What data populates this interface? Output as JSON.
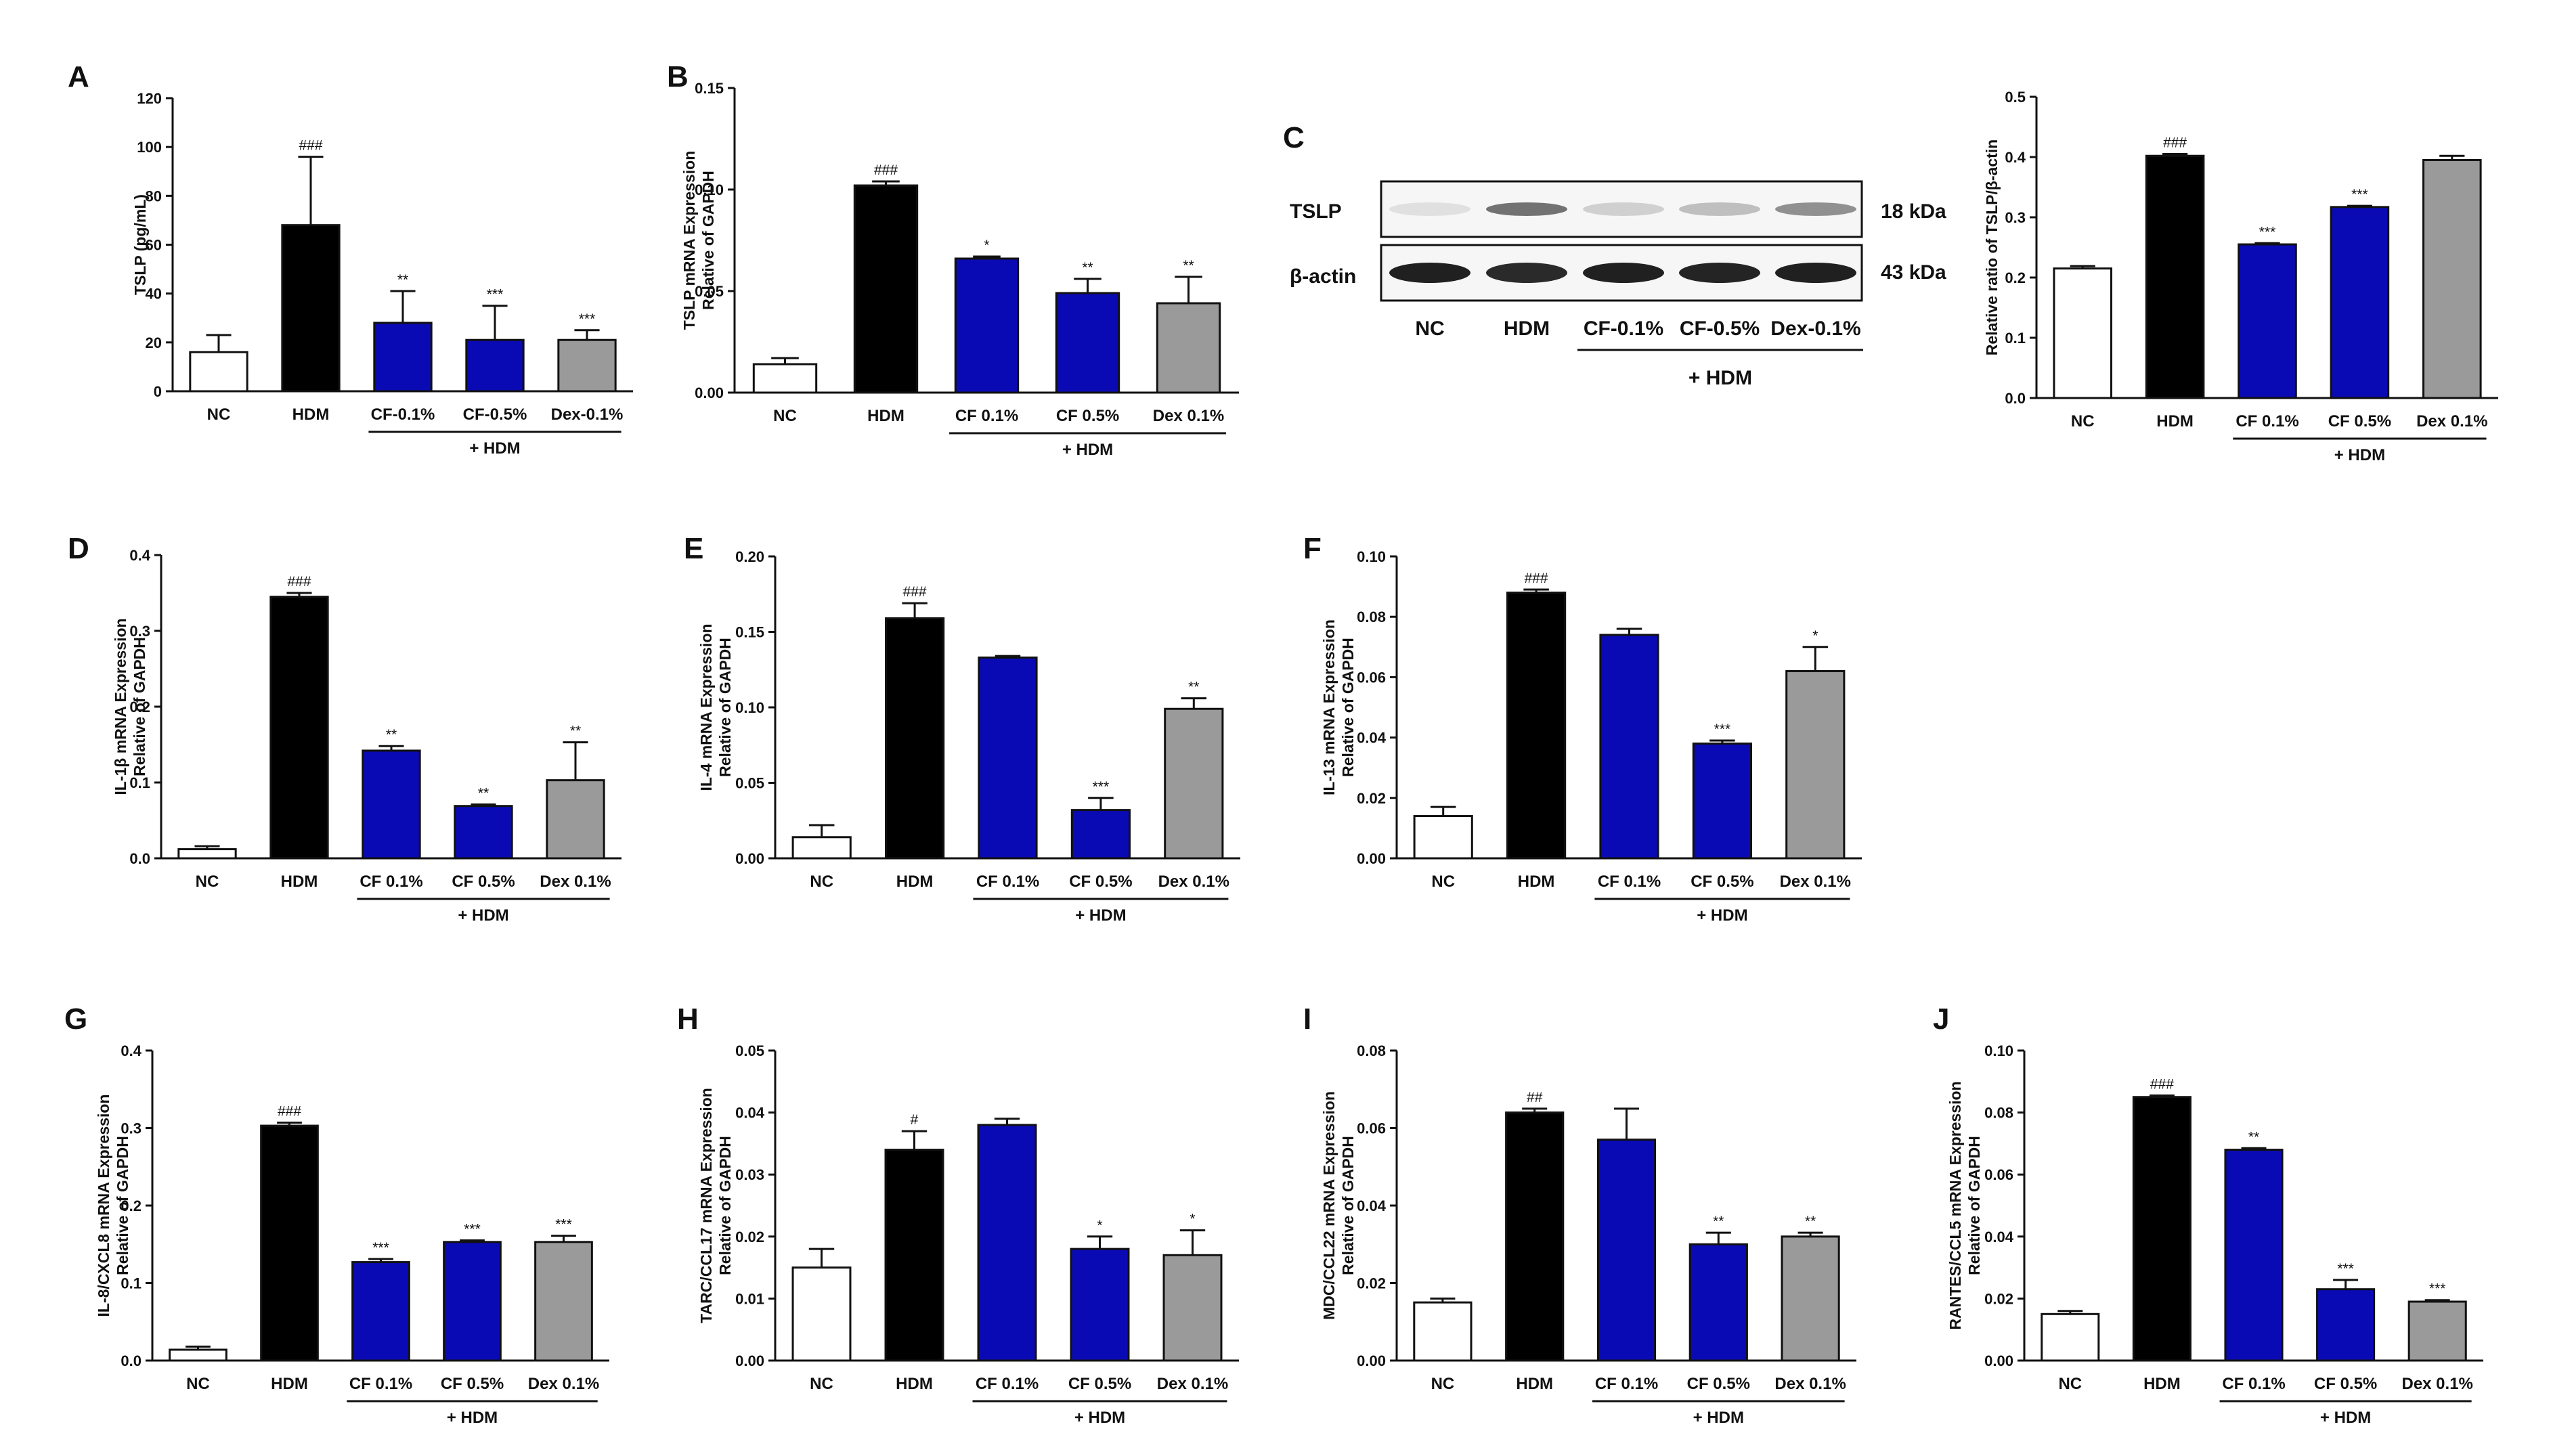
{
  "colors": {
    "NC": "#ffffff",
    "HDM": "#000000",
    "CF": "#0a0ab4",
    "Dex": "#9a9a9a",
    "axis": "#111111"
  },
  "chart_data": [
    {
      "id": "A",
      "type": "bar",
      "panel_label": "A",
      "ylabel_lines": [
        "TSLP  (pg/mL)"
      ],
      "categories": [
        "NC",
        "HDM",
        "CF-0.1%",
        "CF-0.5%",
        "Dex-0.1%"
      ],
      "values": [
        16,
        68,
        28,
        21,
        21
      ],
      "errors": [
        7,
        28,
        13,
        14,
        4
      ],
      "significance": [
        "",
        "###",
        "**",
        "***",
        "***"
      ],
      "ylim": [
        0,
        120
      ],
      "yticks": [
        "0",
        "20",
        "40",
        "60",
        "80",
        "100",
        "120"
      ],
      "group_label": "+ HDM"
    },
    {
      "id": "B",
      "type": "bar",
      "panel_label": "B",
      "ylabel_lines": [
        "TSLP mRNA Expression",
        "Relative of GAPDH"
      ],
      "categories": [
        "NC",
        "HDM",
        "CF 0.1%",
        "CF 0.5%",
        "Dex 0.1%"
      ],
      "values": [
        0.014,
        0.102,
        0.066,
        0.049,
        0.044
      ],
      "errors": [
        0.003,
        0.002,
        0.001,
        0.007,
        0.013
      ],
      "significance": [
        "",
        "###",
        "*",
        "**",
        "**"
      ],
      "ylim": [
        0,
        0.15
      ],
      "yticks": [
        "0.00",
        "0.05",
        "0.10",
        "0.15"
      ],
      "group_label": "+ HDM"
    },
    {
      "id": "C",
      "type": "bar",
      "panel_label": "",
      "ylabel_lines": [
        "Relative ratio of TSLP/β-actin"
      ],
      "categories": [
        "NC",
        "HDM",
        "CF 0.1%",
        "CF 0.5%",
        "Dex 0.1%"
      ],
      "values": [
        0.215,
        0.402,
        0.255,
        0.317,
        0.395
      ],
      "errors": [
        0.004,
        0.003,
        0.002,
        0.002,
        0.007
      ],
      "significance": [
        "",
        "###",
        "***",
        "***",
        ""
      ],
      "ylim": [
        0,
        0.5
      ],
      "yticks": [
        "0.0",
        "0.1",
        "0.2",
        "0.3",
        "0.4",
        "0.5"
      ],
      "group_label": "+ HDM"
    },
    {
      "id": "D",
      "type": "bar",
      "panel_label": "D",
      "ylabel_lines": [
        "IL-1β mRNA Expression",
        "Relative of GAPDH"
      ],
      "categories": [
        "NC",
        "HDM",
        "CF 0.1%",
        "CF 0.5%",
        "Dex 0.1%"
      ],
      "values": [
        0.012,
        0.345,
        0.142,
        0.069,
        0.103
      ],
      "errors": [
        0.004,
        0.005,
        0.006,
        0.002,
        0.05
      ],
      "significance": [
        "",
        "###",
        "**",
        "**",
        "**"
      ],
      "ylim": [
        0,
        0.4
      ],
      "yticks": [
        "0.0",
        "0.1",
        "0.2",
        "0.3",
        "0.4"
      ],
      "group_label": "+ HDM"
    },
    {
      "id": "E",
      "type": "bar",
      "panel_label": "E",
      "ylabel_lines": [
        "IL-4 mRNA Expression",
        "Relative of GAPDH"
      ],
      "categories": [
        "NC",
        "HDM",
        "CF 0.1%",
        "CF 0.5%",
        "Dex 0.1%"
      ],
      "values": [
        0.014,
        0.159,
        0.133,
        0.032,
        0.099
      ],
      "errors": [
        0.008,
        0.01,
        0.001,
        0.008,
        0.007
      ],
      "significance": [
        "",
        "###",
        "",
        "***",
        "**"
      ],
      "ylim": [
        0,
        0.2
      ],
      "yticks": [
        "0.00",
        "0.05",
        "0.10",
        "0.15",
        "0.20"
      ],
      "group_label": "+ HDM"
    },
    {
      "id": "F",
      "type": "bar",
      "panel_label": "F",
      "ylabel_lines": [
        "IL-13 mRNA Expression",
        "Relative of GAPDH"
      ],
      "categories": [
        "NC",
        "HDM",
        "CF 0.1%",
        "CF 0.5%",
        "Dex 0.1%"
      ],
      "values": [
        0.014,
        0.088,
        0.074,
        0.038,
        0.062
      ],
      "errors": [
        0.003,
        0.001,
        0.002,
        0.001,
        0.008
      ],
      "significance": [
        "",
        "###",
        "",
        "***",
        "*"
      ],
      "ylim": [
        0,
        0.1
      ],
      "yticks": [
        "0.00",
        "0.02",
        "0.04",
        "0.06",
        "0.08",
        "0.10"
      ],
      "group_label": "+ HDM"
    },
    {
      "id": "G",
      "type": "bar",
      "panel_label": "G",
      "ylabel_lines": [
        "IL-8/CXCL8 mRNA Expression",
        "Relative of GAPDH"
      ],
      "categories": [
        "NC",
        "HDM",
        "CF 0.1%",
        "CF 0.5%",
        "Dex 0.1%"
      ],
      "values": [
        0.014,
        0.303,
        0.127,
        0.153,
        0.153
      ],
      "errors": [
        0.004,
        0.004,
        0.004,
        0.002,
        0.008
      ],
      "significance": [
        "",
        "###",
        "***",
        "***",
        "***"
      ],
      "ylim": [
        0,
        0.4
      ],
      "yticks": [
        "0.0",
        "0.1",
        "0.2",
        "0.3",
        "0.4"
      ],
      "group_label": "+ HDM"
    },
    {
      "id": "H",
      "type": "bar",
      "panel_label": "H",
      "ylabel_lines": [
        "TARC/CCL17 mRNA Expression",
        "Relative of GAPDH"
      ],
      "categories": [
        "NC",
        "HDM",
        "CF 0.1%",
        "CF 0.5%",
        "Dex 0.1%"
      ],
      "values": [
        0.015,
        0.034,
        0.038,
        0.018,
        0.017
      ],
      "errors": [
        0.003,
        0.003,
        0.001,
        0.002,
        0.004
      ],
      "significance": [
        "",
        "#",
        "",
        "*",
        "*"
      ],
      "ylim": [
        0,
        0.05
      ],
      "yticks": [
        "0.00",
        "0.01",
        "0.02",
        "0.03",
        "0.04",
        "0.05"
      ],
      "group_label": "+ HDM"
    },
    {
      "id": "I",
      "type": "bar",
      "panel_label": "I",
      "ylabel_lines": [
        "MDC/CCL22 mRNA Expression",
        "Relative of GAPDH"
      ],
      "categories": [
        "NC",
        "HDM",
        "CF 0.1%",
        "CF 0.5%",
        "Dex 0.1%"
      ],
      "values": [
        0.015,
        0.064,
        0.057,
        0.03,
        0.032
      ],
      "errors": [
        0.001,
        0.001,
        0.008,
        0.003,
        0.001
      ],
      "significance": [
        "",
        "##",
        "",
        "**",
        "**"
      ],
      "ylim": [
        0,
        0.08
      ],
      "yticks": [
        "0.00",
        "0.02",
        "0.04",
        "0.06",
        "0.08"
      ],
      "group_label": "+ HDM"
    },
    {
      "id": "J",
      "type": "bar",
      "panel_label": "J",
      "ylabel_lines": [
        "RANTES/CCL5 mRNA Expression",
        "Relative of GAPDH"
      ],
      "categories": [
        "NC",
        "HDM",
        "CF 0.1%",
        "CF 0.5%",
        "Dex 0.1%"
      ],
      "values": [
        0.015,
        0.085,
        0.068,
        0.023,
        0.019
      ],
      "errors": [
        0.001,
        0.0005,
        0.0005,
        0.003,
        0.0005
      ],
      "significance": [
        "",
        "###",
        "**",
        "***",
        "***"
      ],
      "ylim": [
        0,
        0.1
      ],
      "yticks": [
        "0.00",
        "0.02",
        "0.04",
        "0.06",
        "0.08",
        "0.10"
      ],
      "group_label": "+ HDM"
    }
  ],
  "western_blot": {
    "panel_label": "C",
    "rows": [
      {
        "label": "TSLP",
        "kda": "18 kDa",
        "intensity": [
          0.06,
          0.6,
          0.14,
          0.22,
          0.45
        ]
      },
      {
        "label": "β-actin",
        "kda": "43 kDa",
        "intensity": [
          1.0,
          0.95,
          1.0,
          0.98,
          1.0
        ]
      }
    ],
    "lanes": [
      "NC",
      "HDM",
      "CF-0.1%",
      "CF-0.5%",
      "Dex-0.1%"
    ],
    "group_label": "+ HDM"
  }
}
